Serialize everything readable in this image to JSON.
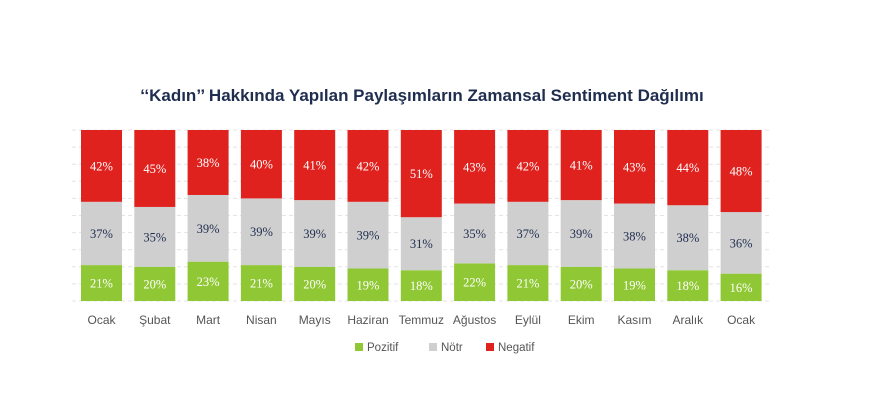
{
  "chart_data": {
    "type": "bar",
    "stacked": true,
    "normalized_percent": true,
    "title": "‘‘Kadın’’ Hakkında Yapılan Paylaşımların Zamansal Sentiment Dağılımı",
    "categories": [
      "Ocak",
      "Şubat",
      "Mart",
      "Nisan",
      "Mayıs",
      "Haziran",
      "Temmuz",
      "Ağustos",
      "Eylül",
      "Ekim",
      "Kasım",
      "Aralık",
      "Ocak"
    ],
    "series": [
      {
        "name": "Pozitif",
        "color": "#8fc834",
        "values": [
          21,
          20,
          23,
          21,
          20,
          19,
          18,
          22,
          21,
          20,
          19,
          18,
          16
        ]
      },
      {
        "name": "Nötr",
        "color": "#cfcfcf",
        "values": [
          37,
          35,
          39,
          39,
          39,
          39,
          31,
          35,
          37,
          39,
          38,
          38,
          36
        ]
      },
      {
        "name": "Negatif",
        "color": "#e0221e",
        "values": [
          42,
          45,
          38,
          40,
          41,
          42,
          51,
          43,
          42,
          41,
          43,
          44,
          48
        ]
      }
    ],
    "value_suffix": "%",
    "ylim": [
      0,
      100
    ],
    "grid": true,
    "legend_position": "bottom-center"
  }
}
